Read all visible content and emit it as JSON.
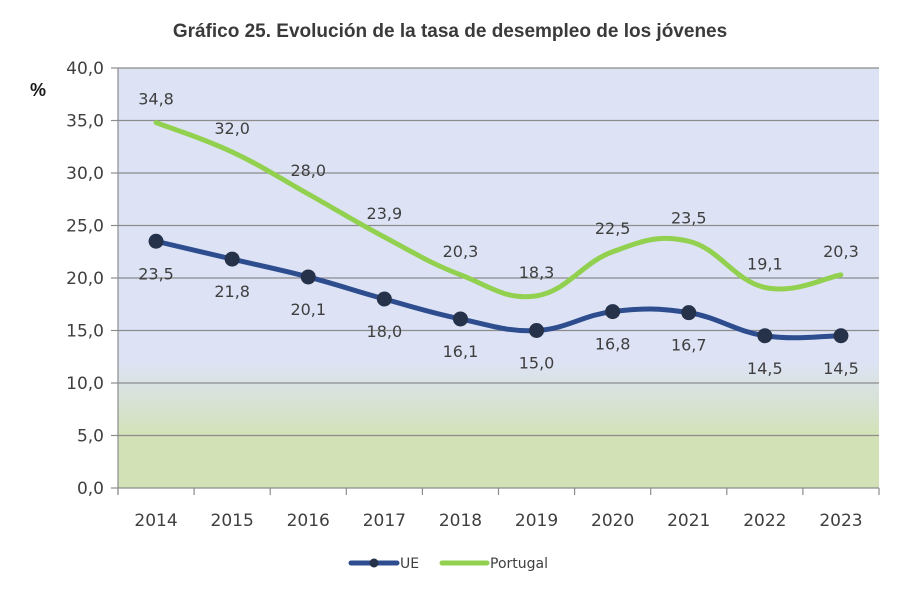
{
  "chart_data": {
    "type": "line",
    "title": "Gráfico 25. Evolución de la tasa de desempleo de los jóvenes",
    "ylabel": "%",
    "xlabel": "",
    "categories": [
      "2014",
      "2015",
      "2016",
      "2017",
      "2018",
      "2019",
      "2020",
      "2021",
      "2022",
      "2023"
    ],
    "ylim": [
      0,
      40
    ],
    "yticks": [
      0,
      5,
      10,
      15,
      20,
      25,
      30,
      35,
      40
    ],
    "ytick_labels": [
      "0,0",
      "5,0",
      "10,0",
      "15,0",
      "20,0",
      "25,0",
      "30,0",
      "35,0",
      "40,0"
    ],
    "grid": true,
    "smooth": true,
    "series": [
      {
        "name": "UE",
        "color": "#2e4d8f",
        "marker_color": "#25324a",
        "markers": true,
        "label_position": "below",
        "values": [
          23.5,
          21.8,
          20.1,
          18.0,
          16.1,
          15.0,
          16.8,
          16.7,
          14.5,
          14.5
        ],
        "labels": [
          "23,5",
          "21,8",
          "20,1",
          "18,0",
          "16,1",
          "15,0",
          "16,8",
          "16,7",
          "14,5",
          "14,5"
        ]
      },
      {
        "name": "Portugal",
        "color": "#92d050",
        "markers": false,
        "label_position": "above",
        "values": [
          34.8,
          32.0,
          28.0,
          23.9,
          20.3,
          18.3,
          22.5,
          23.5,
          19.1,
          20.3
        ],
        "labels": [
          "34,8",
          "32,0",
          "28,0",
          "23,9",
          "20,3",
          "18,3",
          "22,5",
          "23,5",
          "19,1",
          "20,3"
        ]
      }
    ],
    "legend": {
      "position": "bottom",
      "entries": [
        "UE",
        "Portugal"
      ]
    },
    "background": {
      "upper_color": "#dde3f5",
      "lower_color": "#d3e2b6"
    }
  }
}
